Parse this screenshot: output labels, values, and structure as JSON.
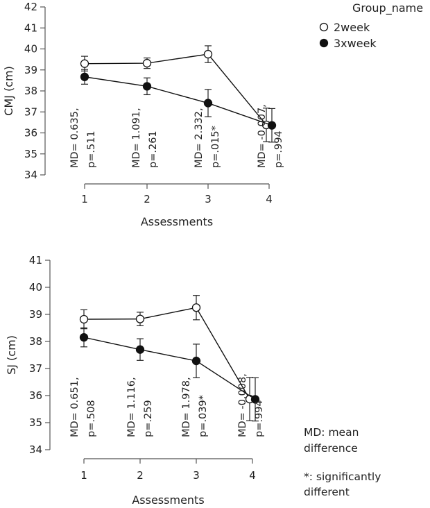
{
  "legend": {
    "title": "Group_name",
    "entries": [
      {
        "label": "2week",
        "marker": "open"
      },
      {
        "label": "3xweek",
        "marker": "filled"
      }
    ]
  },
  "notes": {
    "md_line1": "MD: mean",
    "md_line2": "difference",
    "sig_line1": "*: significantly",
    "sig_line2": "different"
  },
  "chart_data": [
    {
      "type": "line",
      "panel": "top",
      "xlabel": "Assessments",
      "ylabel": "CMJ (cm)",
      "ylim": [
        34,
        42
      ],
      "yticks": [
        34,
        35,
        36,
        37,
        38,
        39,
        40,
        41,
        42
      ],
      "categories": [
        "1",
        "2",
        "3",
        "4"
      ],
      "series": [
        {
          "name": "2week",
          "marker": "open",
          "values": [
            39.3,
            39.32,
            39.75,
            36.38
          ],
          "errors": [
            0.35,
            0.25,
            0.4,
            0.8
          ]
        },
        {
          "name": "3xweek",
          "marker": "filled",
          "values": [
            38.67,
            38.22,
            37.42,
            36.36
          ],
          "errors": [
            0.35,
            0.4,
            0.65,
            0.8
          ]
        }
      ],
      "annotations": [
        {
          "line1": "MD= 0.635,",
          "line2": "p=.511",
          "category": "1"
        },
        {
          "line1": "MD= 1.091,",
          "line2": "p=.261",
          "category": "2"
        },
        {
          "line1": "MD= 2.332,",
          "line2": "p=.015*",
          "category": "3"
        },
        {
          "line1": "MD= -0.007,",
          "line2": "p=.994",
          "category": "4"
        }
      ]
    },
    {
      "type": "line",
      "panel": "bottom",
      "xlabel": "Assessments",
      "ylabel": "SJ (cm)",
      "ylim": [
        34,
        41
      ],
      "yticks": [
        34,
        35,
        36,
        37,
        38,
        39,
        40,
        41
      ],
      "categories": [
        "1",
        "2",
        "3",
        "4"
      ],
      "series": [
        {
          "name": "2week",
          "marker": "open",
          "values": [
            38.82,
            38.83,
            39.25,
            35.87
          ],
          "errors": [
            0.35,
            0.25,
            0.45,
            0.8
          ]
        },
        {
          "name": "3xweek",
          "marker": "filled",
          "values": [
            38.15,
            37.7,
            37.28,
            35.86
          ],
          "errors": [
            0.35,
            0.4,
            0.62,
            0.8
          ]
        }
      ],
      "annotations": [
        {
          "line1": "MD= 0.651,",
          "line2": "p=.508",
          "category": "1"
        },
        {
          "line1": "MD= 1.116,",
          "line2": "p=.259",
          "category": "2"
        },
        {
          "line1": "MD= 1.978,",
          "line2": "p=.039*",
          "category": "3"
        },
        {
          "line1": "MD= -0.008,",
          "line2": "p=.994",
          "category": "4"
        }
      ]
    }
  ]
}
